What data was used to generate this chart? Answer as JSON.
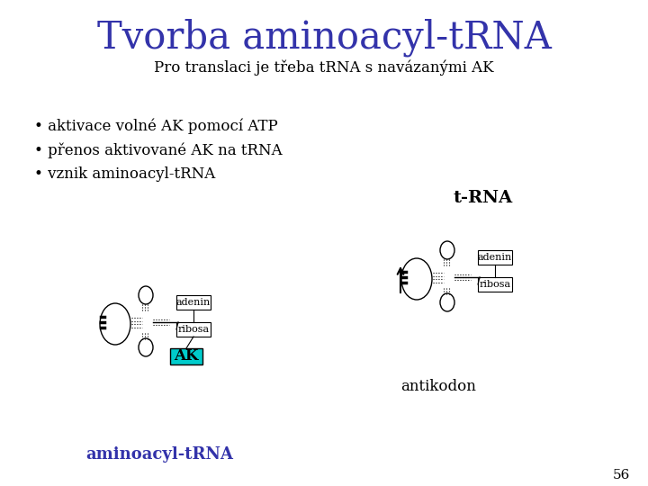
{
  "title": "Tvorba aminoacyl-tRNA",
  "title_color": "#3333aa",
  "title_fontsize": 30,
  "subtitle": "Pro translaci je třeba tRNA s navázanými AK",
  "subtitle_fontsize": 12,
  "bullet1": "• aktivace volné AK pomocí ATP",
  "bullet2": "• přenos aktivované AK na tRNA",
  "bullet3": "• vznik aminoacyl-tRNA",
  "bullet_fontsize": 12,
  "label_trna": "t-RNA",
  "label_trna_fontsize": 14,
  "label_antikodon": "antikodon",
  "label_antikodon_fontsize": 12,
  "label_adenin": "adenin",
  "label_ribosa": "ribosa",
  "label_ak": "AK",
  "label_aminoacyl": "aminoacyl-tRNA",
  "label_aminoacyl_color": "#3333aa",
  "label_aminoacyl_fontsize": 13,
  "page_number": "56",
  "bg_color": "#ffffff",
  "ak_fill": "#00cccc",
  "diagram_fontsize": 8
}
